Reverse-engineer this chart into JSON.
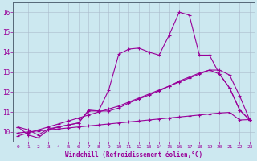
{
  "xlabel": "Windchill (Refroidissement éolien,°C)",
  "background_color": "#cce8f0",
  "line_color": "#990099",
  "grid_color": "#aabbcc",
  "xlim": [
    -0.5,
    23.5
  ],
  "ylim": [
    9.5,
    16.5
  ],
  "yticks": [
    10,
    11,
    12,
    13,
    14,
    15,
    16
  ],
  "xticks": [
    0,
    1,
    2,
    3,
    4,
    5,
    6,
    7,
    8,
    9,
    10,
    11,
    12,
    13,
    14,
    15,
    16,
    17,
    18,
    19,
    20,
    21,
    22,
    23
  ],
  "line1_x": [
    0,
    1,
    2,
    3,
    4,
    5,
    6,
    7,
    8,
    9,
    10,
    11,
    12,
    13,
    14,
    15,
    16,
    17,
    18,
    19,
    20,
    21,
    22,
    23
  ],
  "line1_y": [
    10.25,
    10.1,
    9.85,
    10.15,
    10.25,
    10.35,
    10.45,
    11.1,
    11.05,
    12.1,
    13.9,
    14.15,
    14.2,
    14.0,
    13.85,
    14.85,
    16.0,
    15.85,
    13.85,
    13.85,
    12.9,
    12.2,
    11.1,
    10.6
  ],
  "line2_x": [
    0,
    1,
    2,
    3,
    4,
    5,
    6,
    7,
    8,
    9,
    10,
    11,
    12,
    13,
    14,
    15,
    16,
    17,
    18,
    19,
    20,
    21,
    22,
    23
  ],
  "line2_y": [
    10.25,
    9.85,
    9.7,
    10.1,
    10.25,
    10.35,
    10.45,
    11.05,
    11.05,
    11.05,
    11.2,
    11.45,
    11.65,
    11.85,
    12.05,
    12.3,
    12.55,
    12.75,
    12.95,
    13.1,
    12.9,
    12.2,
    11.1,
    10.6
  ],
  "line3_x": [
    0,
    1,
    2,
    3,
    4,
    5,
    6,
    7,
    8,
    9,
    10,
    11,
    12,
    13,
    14,
    15,
    16,
    17,
    18,
    19,
    20,
    21,
    22,
    23
  ],
  "line3_y": [
    9.95,
    10.0,
    10.05,
    10.1,
    10.15,
    10.2,
    10.25,
    10.3,
    10.35,
    10.4,
    10.45,
    10.5,
    10.55,
    10.6,
    10.65,
    10.7,
    10.75,
    10.8,
    10.85,
    10.9,
    10.95,
    10.98,
    10.6,
    10.62
  ],
  "line4_x": [
    0,
    1,
    2,
    3,
    4,
    5,
    6,
    7,
    8,
    9,
    10,
    11,
    12,
    13,
    14,
    15,
    16,
    17,
    18,
    19,
    20,
    21,
    22,
    23
  ],
  "line4_y": [
    9.8,
    9.95,
    10.1,
    10.25,
    10.4,
    10.55,
    10.7,
    10.85,
    11.0,
    11.15,
    11.3,
    11.5,
    11.7,
    11.9,
    12.1,
    12.3,
    12.5,
    12.7,
    12.9,
    13.1,
    13.1,
    12.85,
    11.8,
    10.6
  ]
}
